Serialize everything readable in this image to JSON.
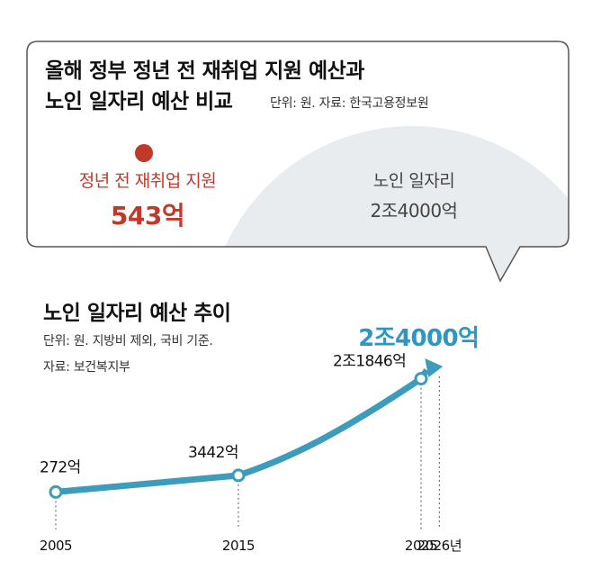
{
  "header": {
    "title_line1": "올해 정부 정년 전 재취업 지원 예산과",
    "title_line2": "노인 일자리 예산 비교",
    "unit_source": "단위: 원. 자료: 한국고용정보원"
  },
  "comparison": {
    "left": {
      "label": "정년 전 재취업 지원",
      "value": "543억",
      "color": "#c0392b"
    },
    "right": {
      "label": "노인 일자리",
      "value": "2조4000억",
      "color": "#e8ecef"
    }
  },
  "chart_section": {
    "title": "노인 일자리 예산 추이",
    "unit_note": "단위: 원. 지방비 제외, 국비 기준.",
    "source_note": "자료: 보건복지부"
  },
  "colors": {
    "line": "#3d9bbb",
    "highlight": "#2e96c4",
    "bubble_border": "#555555"
  },
  "chart_data": {
    "type": "line",
    "title": "노인 일자리 예산 추이",
    "x": [
      2005,
      2015,
      2025,
      2026
    ],
    "x_tick_labels": [
      "2005",
      "2015",
      "2025",
      "2026년"
    ],
    "values": [
      272,
      3442,
      21846,
      24000
    ],
    "data_labels": [
      "272억",
      "3442억",
      "2조1846억",
      "2조4000억"
    ],
    "unit": "억 원",
    "last_point_style": "arrow",
    "highlight_last_label": true,
    "grid": false,
    "ylim": [
      0,
      24000
    ]
  }
}
